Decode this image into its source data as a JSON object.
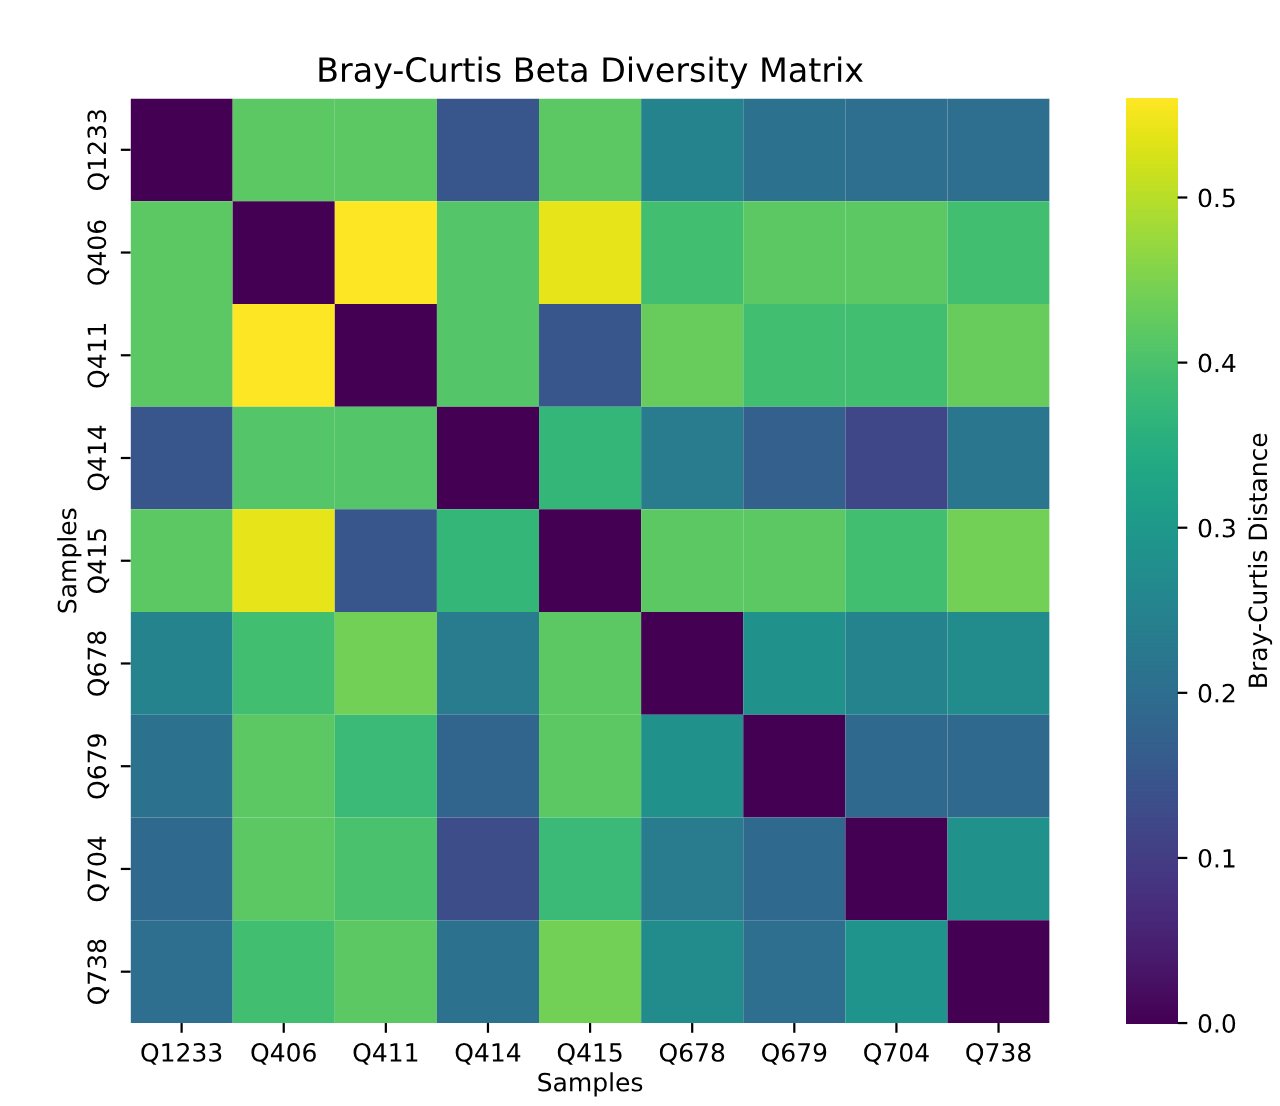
{
  "chart_data": {
    "type": "heatmap",
    "title": "Bray-Curtis Beta Diversity Matrix",
    "xlabel": "Samples",
    "ylabel": "Samples",
    "clabel": "Bray-Curtis Distance",
    "categories": [
      "Q1233",
      "Q406",
      "Q411",
      "Q414",
      "Q415",
      "Q678",
      "Q679",
      "Q704",
      "Q738"
    ],
    "y_categories": [
      "Q1233",
      "Q406",
      "Q411",
      "Q414",
      "Q415",
      "Q678",
      "Q679",
      "Q704",
      "Q738"
    ],
    "cells": [
      [
        0,
        0.42,
        0.42,
        0.15,
        0.42,
        0.25,
        0.21,
        0.2,
        0.2
      ],
      [
        0.42,
        0,
        0.56,
        0.41,
        0.54,
        0.39,
        0.42,
        0.42,
        0.39
      ],
      [
        0.42,
        0.56,
        0,
        0.41,
        0.15,
        0.43,
        0.39,
        0.39,
        0.43
      ],
      [
        0.15,
        0.41,
        0.41,
        0,
        0.37,
        0.23,
        0.17,
        0.12,
        0.22
      ],
      [
        0.42,
        0.54,
        0.15,
        0.37,
        0,
        0.42,
        0.42,
        0.39,
        0.44
      ],
      [
        0.25,
        0.39,
        0.44,
        0.23,
        0.42,
        0,
        0.28,
        0.25,
        0.27
      ],
      [
        0.21,
        0.42,
        0.38,
        0.18,
        0.42,
        0.28,
        0,
        0.19,
        0.19
      ],
      [
        0.19,
        0.42,
        0.4,
        0.13,
        0.38,
        0.23,
        0.19,
        0,
        0.28
      ],
      [
        0.2,
        0.39,
        0.42,
        0.21,
        0.44,
        0.27,
        0.2,
        0.29,
        0
      ]
    ],
    "clim": [
      0,
      0.56
    ],
    "cticks": [
      {
        "value": 0,
        "label": "0.0"
      },
      0.1,
      0.2,
      0.3,
      0.4,
      0.5
    ]
  }
}
